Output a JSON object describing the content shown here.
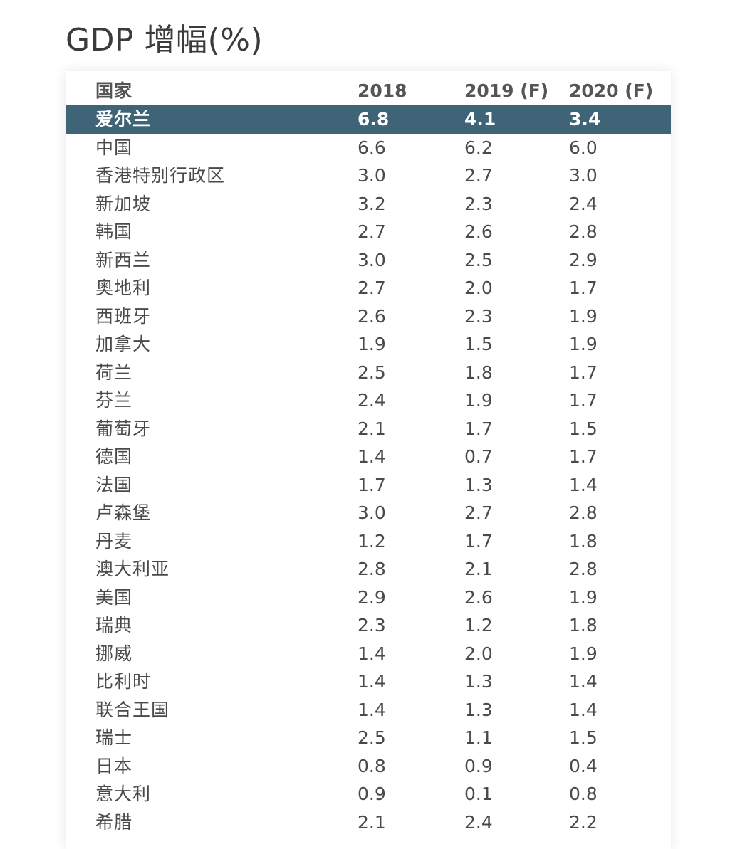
{
  "title": "GDP 增幅(%)",
  "colors": {
    "highlight_bg": "#3f6478",
    "highlight_text": "#ffffff",
    "text": "#4a4a4a"
  },
  "chart_data": {
    "type": "table",
    "title": "GDP 增幅(%)",
    "columns": [
      "国家",
      "2018",
      "2019 (F)",
      "2020 (F)"
    ],
    "highlighted_row": "爱尔兰",
    "rows": [
      [
        "爱尔兰",
        "6.8",
        "4.1",
        "3.4"
      ],
      [
        "中国",
        "6.6",
        "6.2",
        "6.0"
      ],
      [
        "香港特别行政区",
        "3.0",
        "2.7",
        "3.0"
      ],
      [
        "新加坡",
        "3.2",
        "2.3",
        "2.4"
      ],
      [
        "韩国",
        "2.7",
        "2.6",
        "2.8"
      ],
      [
        "新西兰",
        "3.0",
        "2.5",
        "2.9"
      ],
      [
        "奥地利",
        "2.7",
        "2.0",
        "1.7"
      ],
      [
        "西班牙",
        "2.6",
        "2.3",
        "1.9"
      ],
      [
        "加拿大",
        "1.9",
        "1.5",
        "1.9"
      ],
      [
        "荷兰",
        "2.5",
        "1.8",
        "1.7"
      ],
      [
        "芬兰",
        "2.4",
        "1.9",
        "1.7"
      ],
      [
        "葡萄牙",
        "2.1",
        "1.7",
        "1.5"
      ],
      [
        "德国",
        "1.4",
        "0.7",
        "1.7"
      ],
      [
        "法国",
        "1.7",
        "1.3",
        "1.4"
      ],
      [
        "卢森堡",
        "3.0",
        "2.7",
        "2.8"
      ],
      [
        "丹麦",
        "1.2",
        "1.7",
        "1.8"
      ],
      [
        "澳大利亚",
        "2.8",
        "2.1",
        "2.8"
      ],
      [
        "美国",
        "2.9",
        "2.6",
        "1.9"
      ],
      [
        "瑞典",
        "2.3",
        "1.2",
        "1.8"
      ],
      [
        "挪威",
        "1.4",
        "2.0",
        "1.9"
      ],
      [
        "比利时",
        "1.4",
        "1.3",
        "1.4"
      ],
      [
        "联合王国",
        "1.4",
        "1.3",
        "1.4"
      ],
      [
        "瑞士",
        "2.5",
        "1.1",
        "1.5"
      ],
      [
        "日本",
        "0.8",
        "0.9",
        "0.4"
      ],
      [
        "意大利",
        "0.9",
        "0.1",
        "0.8"
      ],
      [
        "希腊",
        "2.1",
        "2.4",
        "2.2"
      ]
    ]
  }
}
